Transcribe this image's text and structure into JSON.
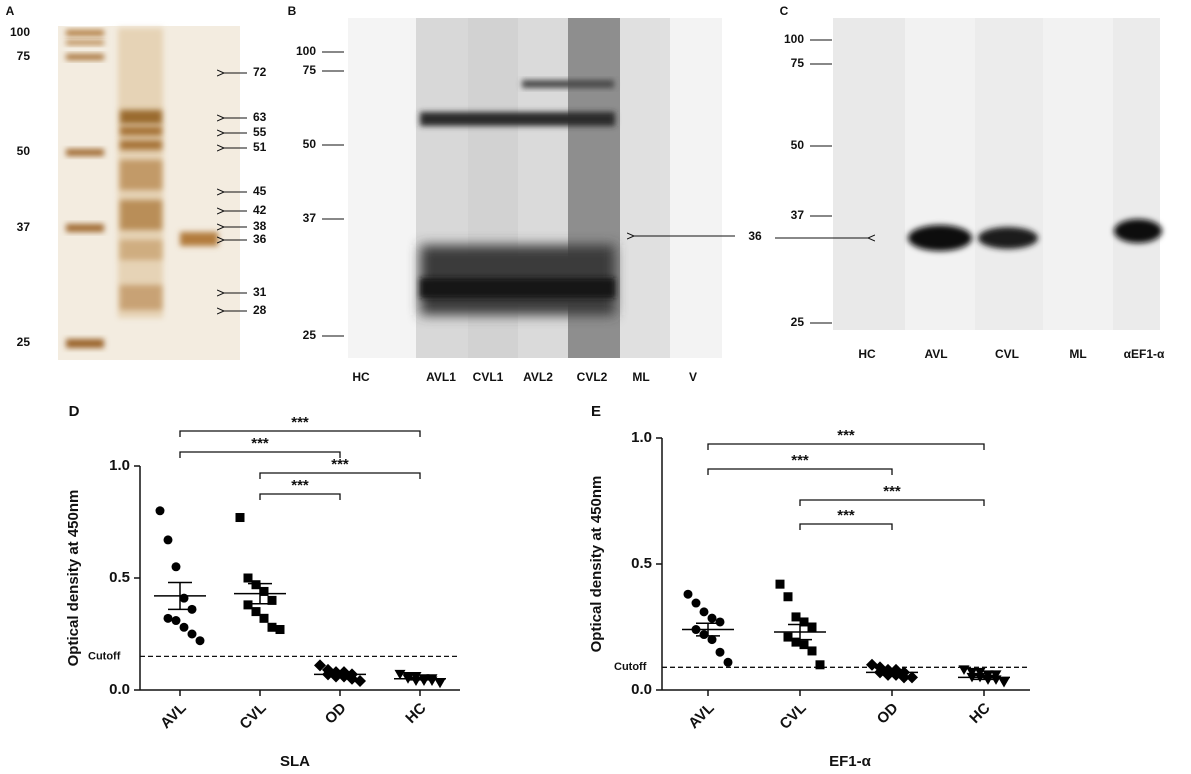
{
  "panels": [
    {
      "label": "A",
      "markers": [
        "100",
        "75",
        "50",
        "37",
        "25"
      ],
      "bands": [
        "72",
        "63",
        "55",
        "51",
        "45",
        "42",
        "38",
        "36",
        "31",
        "28"
      ]
    },
    {
      "label": "B",
      "markers": [
        "100",
        "75",
        "50",
        "37",
        "25"
      ],
      "lanes": [
        "HC",
        "AVL1",
        "CVL1",
        "AVL2",
        "CVL2",
        "ML",
        "V"
      ],
      "arrow": "36"
    },
    {
      "label": "C",
      "markers": [
        "100",
        "75",
        "50",
        "37",
        "25"
      ],
      "lanes": [
        "HC",
        "AVL",
        "CVL",
        "ML",
        "αEF1-α"
      ]
    }
  ],
  "chart_data": [
    {
      "type": "dot",
      "label": "D",
      "xlabel": "SLA",
      "ylabel": "Optical density at 450nm",
      "categories": [
        "AVL",
        "CVL",
        "OD",
        "HC"
      ],
      "markers": [
        "circle",
        "square",
        "diamond",
        "triangle-down"
      ],
      "color": "#000000",
      "values": [
        [
          0.8,
          0.67,
          0.55,
          0.41,
          0.36,
          0.32,
          0.31,
          0.28,
          0.25,
          0.22
        ],
        [
          0.77,
          0.5,
          0.47,
          0.44,
          0.4,
          0.38,
          0.35,
          0.32,
          0.28,
          0.27
        ],
        [
          0.11,
          0.09,
          0.08,
          0.08,
          0.07,
          0.07,
          0.06,
          0.06,
          0.05,
          0.04
        ],
        [
          0.07,
          0.06,
          0.06,
          0.05,
          0.05,
          0.05,
          0.04,
          0.04,
          0.04,
          0.03
        ]
      ],
      "mean": [
        0.42,
        0.43,
        0.07,
        0.05
      ],
      "sem": [
        0.06,
        0.045,
        0.01,
        0.005
      ],
      "cutoff": 0.15,
      "cutoff_label": "Cutoff",
      "comparisons": [
        {
          "from": 0,
          "to": 3,
          "label": "***"
        },
        {
          "from": 0,
          "to": 2,
          "label": "***"
        },
        {
          "from": 1,
          "to": 3,
          "label": "***"
        },
        {
          "from": 1,
          "to": 2,
          "label": "***"
        }
      ],
      "ylim": [
        0,
        1.0
      ],
      "yticks": [
        {
          "value": 0,
          "label": "0.0"
        },
        {
          "value": 0.5,
          "label": "0.5"
        },
        {
          "value": 1.0,
          "label": "1.0"
        }
      ]
    },
    {
      "type": "dot",
      "label": "E",
      "xlabel": "EF1-α",
      "ylabel": "Optical density at 450nm",
      "categories": [
        "AVL",
        "CVL",
        "OD",
        "HC"
      ],
      "markers": [
        "circle",
        "square",
        "diamond",
        "triangle-down"
      ],
      "color": "#000000",
      "values": [
        [
          0.38,
          0.345,
          0.31,
          0.285,
          0.27,
          0.24,
          0.22,
          0.2,
          0.15,
          0.11
        ],
        [
          0.42,
          0.37,
          0.29,
          0.27,
          0.25,
          0.21,
          0.19,
          0.18,
          0.155,
          0.1
        ],
        [
          0.1,
          0.09,
          0.08,
          0.08,
          0.07,
          0.07,
          0.06,
          0.06,
          0.05,
          0.05
        ],
        [
          0.08,
          0.07,
          0.07,
          0.06,
          0.06,
          0.05,
          0.05,
          0.04,
          0.04,
          0.03
        ]
      ],
      "mean": [
        0.24,
        0.23,
        0.07,
        0.05
      ],
      "sem": [
        0.025,
        0.03,
        0.01,
        0.008
      ],
      "cutoff": 0.09,
      "cutoff_label": "Cutoff",
      "comparisons": [
        {
          "from": 0,
          "to": 3,
          "label": "***"
        },
        {
          "from": 0,
          "to": 2,
          "label": "***"
        },
        {
          "from": 1,
          "to": 3,
          "label": "***"
        },
        {
          "from": 1,
          "to": 2,
          "label": "***"
        }
      ],
      "ylim": [
        0,
        1.0
      ],
      "yticks": [
        {
          "value": 0,
          "label": "0.0"
        },
        {
          "value": 0.5,
          "label": "0.5"
        },
        {
          "value": 1.0,
          "label": "1.0"
        }
      ]
    }
  ]
}
